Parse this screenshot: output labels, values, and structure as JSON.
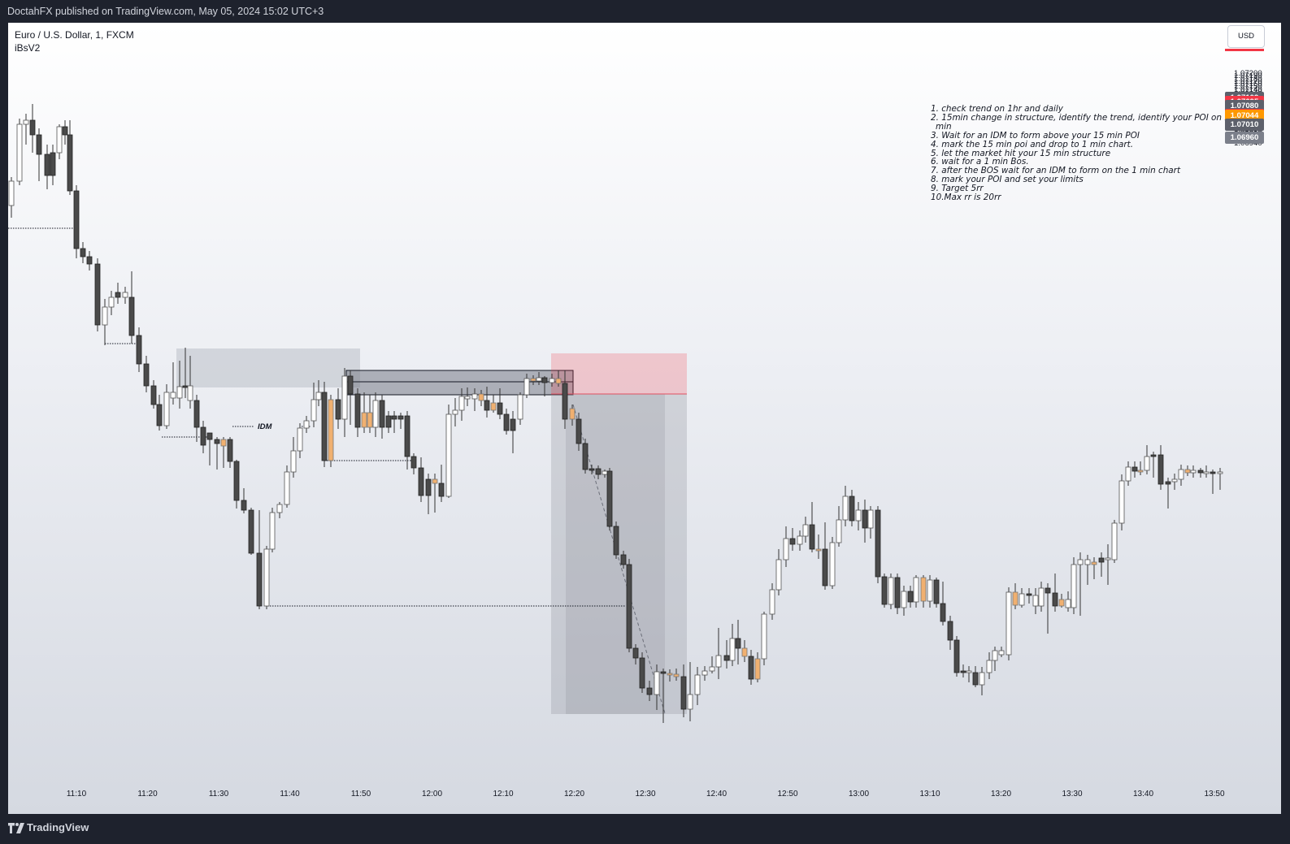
{
  "header": {
    "published_text": "DoctahFX published on TradingView.com, May 05, 2024 15:02 UTC+3"
  },
  "chart": {
    "symbol_line": "Euro / U.S. Dollar, 1, FXCM",
    "indicator": "iBsV2",
    "currency_button": "USD",
    "idm_label": "IDM",
    "price_ticks": [
      "1.07200",
      "1.07190",
      "1.07180",
      "1.07170",
      "1.07160",
      "1.07150",
      "1.07140",
      "1.07130",
      "1.07120",
      "1.07100",
      "1.07090",
      "1.07070",
      "1.07060",
      "1.07040",
      "1.07030",
      "1.07020",
      "1.07000",
      "1.06990",
      "1.06980",
      "1.06970",
      "1.06950",
      "1.06940"
    ],
    "price_tags": [
      {
        "label": "1.07109",
        "color": "#5d606b",
        "price": 1.07109
      },
      {
        "label": "1.07095",
        "color": "#f23645",
        "price": 1.07095
      },
      {
        "label": "1.07080",
        "color": "#5d606b",
        "price": 1.0708
      },
      {
        "label": "1.07045",
        "color": "#f23645",
        "price": 1.07045
      },
      {
        "label": "1.07044",
        "color": "#ff9800",
        "price": 1.07044
      },
      {
        "label": "1.07010",
        "color": "#5d606b",
        "price": 1.0701
      },
      {
        "label": "1.06960",
        "color": "#7b7f8a",
        "price": 1.0696
      }
    ],
    "time_ticks": [
      "11:10",
      "11:20",
      "11:30",
      "11:40",
      "11:50",
      "12:00",
      "12:10",
      "12:20",
      "12:30",
      "12:40",
      "12:50",
      "13:00",
      "13:10",
      "13:20",
      "13:30",
      "13:40",
      "13:50"
    ],
    "notes": [
      "1. check trend on 1hr and daily",
      "2. 15min change in structure, identify the trend, identify your POI on 15",
      "min",
      "3. Wait for an IDM to form above your 15 min POI",
      "4. mark the 15 min poi and drop to 1 min chart.",
      "5. let the market hit your 15 min structure",
      "6. wait for a 1 min Bos.",
      "7. after the BOS wait for an IDM to form on the 1 min chart",
      "8. mark your POI and set your limits",
      "9. Target 5rr",
      "10.Max rr is 20rr"
    ],
    "colors": {
      "bull_candle": "#ffffff",
      "bear_candle": "#4a4a4a",
      "highlight_candle": "#f0b070",
      "stop_zone": "#f23645",
      "target_zone": "#9598a1"
    }
  },
  "footer": {
    "brand": "TradingView",
    "logo_icon": "tradingview-logo-icon"
  }
}
